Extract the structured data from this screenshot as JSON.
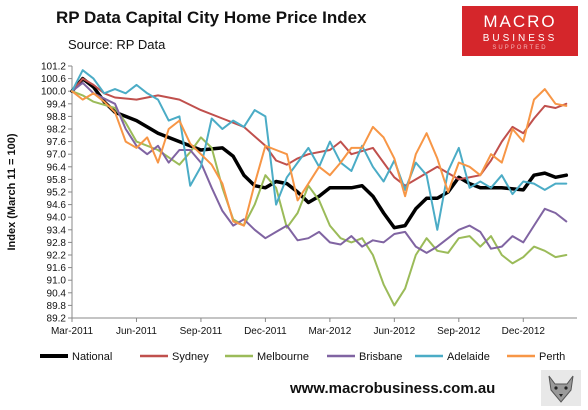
{
  "header": {
    "title": "RP Data Capital City Home Price Index",
    "subtitle": "Source: RP Data"
  },
  "logo": {
    "main": "MACRO",
    "sub": "BUSINESS",
    "tag": "SUPPORTED"
  },
  "footer": {
    "url": "www.macrobusiness.com.au"
  },
  "colors": {
    "National": "#000000",
    "Sydney": "#c0504d",
    "Melbourne": "#9bbb59",
    "Brisbane": "#8064a2",
    "Adelaide": "#4bacc6",
    "Perth": "#f79646"
  },
  "chart_data": {
    "type": "line",
    "ylabel": "Index (March 11 = 100)",
    "xlabel": "",
    "ylim": [
      89.2,
      101.2
    ],
    "y_ticks": [
      "89.2",
      "89.8",
      "90.4",
      "91.0",
      "91.6",
      "92.2",
      "92.8",
      "93.4",
      "94.0",
      "94.6",
      "95.2",
      "95.8",
      "96.4",
      "97.0",
      "97.6",
      "98.2",
      "98.8",
      "99.4",
      "100.0",
      "100.6",
      "101.2"
    ],
    "x_ticks": [
      "Mar-2011",
      "Jun-2011",
      "Sep-2011",
      "Dec-2011",
      "Mar-2012",
      "Jun-2012",
      "Sep-2012",
      "Dec-2012"
    ],
    "x_range_months": [
      0,
      23.5
    ],
    "legend_position": "bottom",
    "grid": false,
    "series": [
      {
        "name": "National",
        "points": [
          [
            0,
            100.0
          ],
          [
            0.5,
            100.6
          ],
          [
            1,
            100.2
          ],
          [
            1.5,
            99.5
          ],
          [
            2,
            99.0
          ],
          [
            3,
            98.6
          ],
          [
            4,
            98.0
          ],
          [
            5,
            97.6
          ],
          [
            6,
            97.2
          ],
          [
            7,
            97.3
          ],
          [
            7.5,
            96.9
          ],
          [
            8,
            96.0
          ],
          [
            8.5,
            95.5
          ],
          [
            9,
            95.4
          ],
          [
            9.5,
            95.7
          ],
          [
            10,
            95.6
          ],
          [
            10.5,
            95.2
          ],
          [
            11,
            94.7
          ],
          [
            11.5,
            95.0
          ],
          [
            12,
            95.4
          ],
          [
            13,
            95.4
          ],
          [
            13.5,
            95.5
          ],
          [
            14,
            95.0
          ],
          [
            14.5,
            94.2
          ],
          [
            15,
            93.5
          ],
          [
            15.5,
            93.6
          ],
          [
            16,
            94.4
          ],
          [
            16.5,
            94.9
          ],
          [
            17,
            94.9
          ],
          [
            17.5,
            95.2
          ],
          [
            18,
            95.9
          ],
          [
            18.5,
            95.6
          ],
          [
            19,
            95.4
          ],
          [
            20,
            95.4
          ],
          [
            21,
            95.3
          ],
          [
            21.5,
            96.0
          ],
          [
            22,
            96.1
          ],
          [
            22.5,
            95.9
          ],
          [
            23,
            96.0
          ]
        ]
      },
      {
        "name": "Sydney",
        "points": [
          [
            0,
            100.0
          ],
          [
            0.5,
            100.6
          ],
          [
            1,
            100.3
          ],
          [
            1.5,
            99.9
          ],
          [
            2,
            99.7
          ],
          [
            3,
            99.6
          ],
          [
            4,
            99.8
          ],
          [
            5,
            99.6
          ],
          [
            6,
            99.1
          ],
          [
            7,
            98.7
          ],
          [
            8,
            98.3
          ],
          [
            9,
            97.4
          ],
          [
            9.5,
            96.7
          ],
          [
            10,
            96.5
          ],
          [
            10.5,
            96.8
          ],
          [
            11,
            97.0
          ],
          [
            12,
            97.2
          ],
          [
            12.5,
            97.6
          ],
          [
            13,
            97.0
          ],
          [
            14,
            97.3
          ],
          [
            14.5,
            96.6
          ],
          [
            15,
            95.9
          ],
          [
            15.5,
            95.5
          ],
          [
            16,
            95.8
          ],
          [
            17,
            96.4
          ],
          [
            18,
            95.8
          ],
          [
            19,
            96.0
          ],
          [
            19.5,
            96.7
          ],
          [
            20,
            97.6
          ],
          [
            20.5,
            98.3
          ],
          [
            21,
            98.0
          ],
          [
            21.5,
            98.7
          ],
          [
            22,
            99.3
          ],
          [
            22.5,
            99.2
          ],
          [
            23,
            99.4
          ]
        ]
      },
      {
        "name": "Melbourne",
        "points": [
          [
            0,
            100.0
          ],
          [
            0.5,
            99.8
          ],
          [
            1,
            99.5
          ],
          [
            2,
            99.2
          ],
          [
            2.5,
            98.5
          ],
          [
            3,
            97.6
          ],
          [
            4,
            97.2
          ],
          [
            5,
            96.5
          ],
          [
            5.5,
            97.1
          ],
          [
            6,
            97.8
          ],
          [
            6.5,
            97.3
          ],
          [
            7,
            95.4
          ],
          [
            7.5,
            93.9
          ],
          [
            8,
            93.6
          ],
          [
            8.5,
            94.6
          ],
          [
            9,
            96.0
          ],
          [
            9.5,
            95.4
          ],
          [
            10,
            93.5
          ],
          [
            10.5,
            94.2
          ],
          [
            11,
            95.5
          ],
          [
            11.5,
            94.8
          ],
          [
            12,
            93.6
          ],
          [
            12.5,
            93.0
          ],
          [
            13,
            92.8
          ],
          [
            13.5,
            93.0
          ],
          [
            14,
            92.2
          ],
          [
            14.5,
            90.8
          ],
          [
            15,
            89.8
          ],
          [
            15.5,
            90.6
          ],
          [
            16,
            92.2
          ],
          [
            16.5,
            93.0
          ],
          [
            17,
            92.4
          ],
          [
            17.5,
            92.3
          ],
          [
            18,
            93.0
          ],
          [
            18.5,
            93.1
          ],
          [
            19,
            92.6
          ],
          [
            19.5,
            93.1
          ],
          [
            20,
            92.2
          ],
          [
            20.5,
            91.8
          ],
          [
            21,
            92.1
          ],
          [
            21.5,
            92.6
          ],
          [
            22,
            92.4
          ],
          [
            22.5,
            92.1
          ],
          [
            23,
            92.2
          ]
        ]
      },
      {
        "name": "Brisbane",
        "points": [
          [
            0,
            100.0
          ],
          [
            0.5,
            100.4
          ],
          [
            1,
            99.9
          ],
          [
            2,
            99.4
          ],
          [
            2.5,
            98.2
          ],
          [
            3,
            97.4
          ],
          [
            3.5,
            97.0
          ],
          [
            4,
            97.4
          ],
          [
            4.5,
            96.6
          ],
          [
            5,
            97.2
          ],
          [
            5.5,
            97.2
          ],
          [
            6,
            96.6
          ],
          [
            6.5,
            95.4
          ],
          [
            7,
            94.3
          ],
          [
            7.5,
            93.6
          ],
          [
            8,
            93.9
          ],
          [
            8.5,
            93.4
          ],
          [
            9,
            93.0
          ],
          [
            9.5,
            93.3
          ],
          [
            10,
            93.6
          ],
          [
            10.5,
            92.9
          ],
          [
            11,
            93.0
          ],
          [
            11.5,
            93.3
          ],
          [
            12,
            92.8
          ],
          [
            12.5,
            92.7
          ],
          [
            13,
            93.1
          ],
          [
            13.5,
            92.6
          ],
          [
            14,
            92.9
          ],
          [
            14.5,
            92.8
          ],
          [
            15,
            93.2
          ],
          [
            15.5,
            93.3
          ],
          [
            16,
            92.6
          ],
          [
            16.5,
            92.3
          ],
          [
            17,
            92.6
          ],
          [
            17.5,
            93.0
          ],
          [
            18,
            93.4
          ],
          [
            18.5,
            93.6
          ],
          [
            19,
            93.3
          ],
          [
            19.5,
            92.5
          ],
          [
            20,
            92.6
          ],
          [
            20.5,
            93.1
          ],
          [
            21,
            92.8
          ],
          [
            21.5,
            93.6
          ],
          [
            22,
            94.4
          ],
          [
            22.5,
            94.2
          ],
          [
            23,
            93.8
          ]
        ]
      },
      {
        "name": "Adelaide",
        "points": [
          [
            0,
            100.0
          ],
          [
            0.5,
            101.0
          ],
          [
            1,
            100.6
          ],
          [
            1.5,
            99.9
          ],
          [
            2,
            100.1
          ],
          [
            2.5,
            99.9
          ],
          [
            3,
            100.3
          ],
          [
            3.5,
            99.9
          ],
          [
            4,
            99.6
          ],
          [
            4.5,
            98.6
          ],
          [
            5,
            98.8
          ],
          [
            5.5,
            95.5
          ],
          [
            6,
            96.4
          ],
          [
            6.5,
            98.7
          ],
          [
            7,
            98.2
          ],
          [
            7.5,
            98.6
          ],
          [
            8,
            98.3
          ],
          [
            8.5,
            99.1
          ],
          [
            9,
            98.8
          ],
          [
            9.5,
            94.6
          ],
          [
            10,
            95.9
          ],
          [
            10.5,
            96.6
          ],
          [
            11,
            97.3
          ],
          [
            11.5,
            96.4
          ],
          [
            12,
            97.6
          ],
          [
            12.5,
            96.6
          ],
          [
            13,
            96.2
          ],
          [
            13.5,
            97.4
          ],
          [
            14,
            96.4
          ],
          [
            14.5,
            95.7
          ],
          [
            15,
            96.7
          ],
          [
            15.5,
            95.3
          ],
          [
            16,
            96.6
          ],
          [
            16.5,
            96.0
          ],
          [
            17,
            93.4
          ],
          [
            17.5,
            96.2
          ],
          [
            18,
            97.3
          ],
          [
            18.5,
            95.4
          ],
          [
            19,
            95.7
          ],
          [
            19.5,
            95.4
          ],
          [
            20,
            96.0
          ],
          [
            20.5,
            95.1
          ],
          [
            21,
            95.7
          ],
          [
            21.5,
            95.6
          ],
          [
            22,
            95.3
          ],
          [
            22.5,
            95.6
          ],
          [
            23,
            95.6
          ]
        ]
      },
      {
        "name": "Perth",
        "points": [
          [
            0,
            100.0
          ],
          [
            0.5,
            99.6
          ],
          [
            1,
            99.9
          ],
          [
            1.5,
            99.5
          ],
          [
            2,
            99.0
          ],
          [
            2.5,
            97.6
          ],
          [
            3,
            97.3
          ],
          [
            3.5,
            97.8
          ],
          [
            4,
            96.6
          ],
          [
            4.5,
            98.2
          ],
          [
            5,
            98.6
          ],
          [
            5.5,
            97.5
          ],
          [
            6,
            97.0
          ],
          [
            6.5,
            96.5
          ],
          [
            7,
            95.6
          ],
          [
            7.5,
            93.8
          ],
          [
            8,
            93.6
          ],
          [
            8.5,
            95.6
          ],
          [
            9,
            97.4
          ],
          [
            9.5,
            97.2
          ],
          [
            10,
            97.0
          ],
          [
            10.5,
            94.8
          ],
          [
            11,
            95.6
          ],
          [
            11.5,
            96.4
          ],
          [
            12,
            96.0
          ],
          [
            12.5,
            96.6
          ],
          [
            13,
            97.3
          ],
          [
            13.5,
            97.3
          ],
          [
            14,
            98.3
          ],
          [
            14.5,
            97.8
          ],
          [
            15,
            96.8
          ],
          [
            15.5,
            95.0
          ],
          [
            16,
            97.0
          ],
          [
            16.5,
            98.0
          ],
          [
            17,
            96.8
          ],
          [
            17.5,
            95.2
          ],
          [
            18,
            96.6
          ],
          [
            18.5,
            96.4
          ],
          [
            19,
            96.0
          ],
          [
            19.5,
            97.0
          ],
          [
            20,
            96.6
          ],
          [
            20.5,
            98.2
          ],
          [
            21,
            97.6
          ],
          [
            21.5,
            99.6
          ],
          [
            22,
            100.1
          ],
          [
            22.5,
            99.4
          ],
          [
            23,
            99.3
          ]
        ]
      }
    ]
  }
}
